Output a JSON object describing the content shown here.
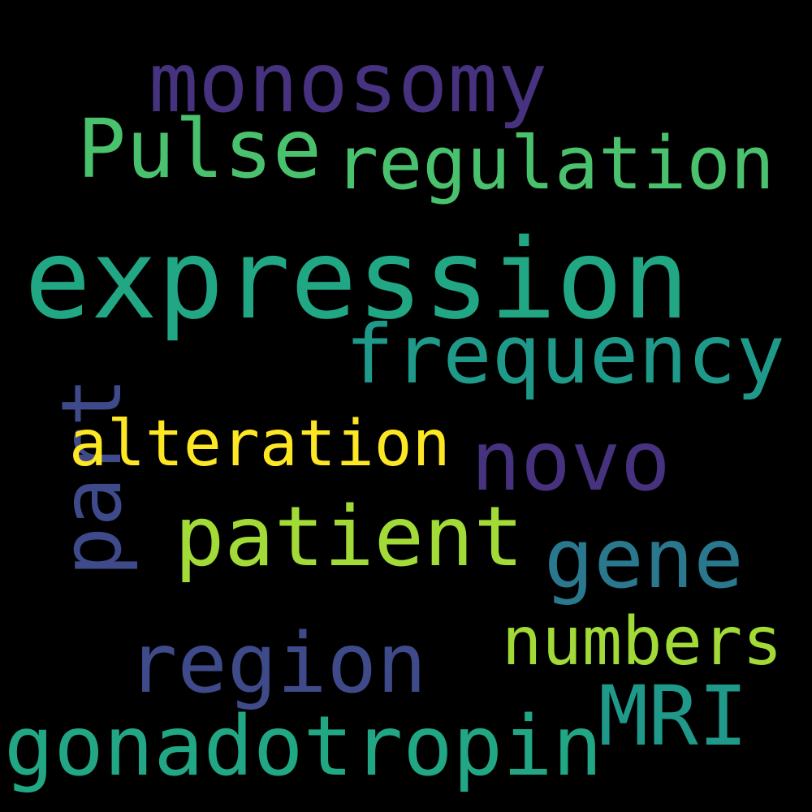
{
  "words": [
    {
      "id": "monosomy",
      "text": "monosomy",
      "color": "#46327e"
    },
    {
      "id": "pulse",
      "text": "Pulse",
      "color": "#4ac16d"
    },
    {
      "id": "regulation",
      "text": "regulation",
      "color": "#4ac16d"
    },
    {
      "id": "expression",
      "text": "expression",
      "color": "#22a785"
    },
    {
      "id": "frequency",
      "text": "frequency",
      "color": "#1f9a8a"
    },
    {
      "id": "part",
      "text": "part",
      "color": "#3e4a89"
    },
    {
      "id": "alteration",
      "text": "alteration",
      "color": "#fde725"
    },
    {
      "id": "novo",
      "text": "novo",
      "color": "#46327e"
    },
    {
      "id": "patient",
      "text": "patient",
      "color": "#a2da37"
    },
    {
      "id": "gene",
      "text": "gene",
      "color": "#2a788e"
    },
    {
      "id": "numbers",
      "text": "numbers",
      "color": "#a2da37"
    },
    {
      "id": "region",
      "text": "region",
      "color": "#3e4a89"
    },
    {
      "id": "mri",
      "text": "MRI",
      "color": "#1f9a8a"
    },
    {
      "id": "gonadotropin",
      "text": "gonadotropin",
      "color": "#22a785"
    }
  ]
}
